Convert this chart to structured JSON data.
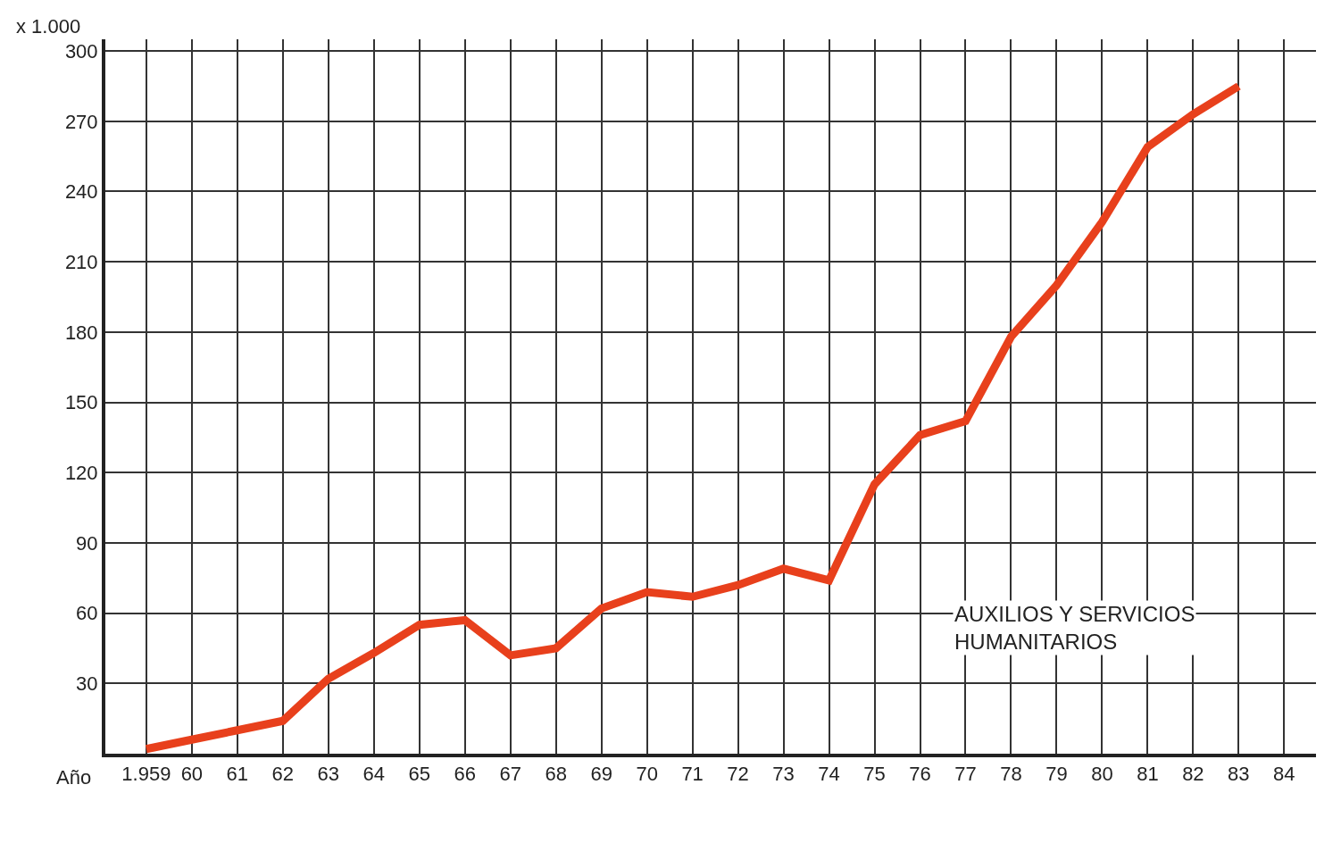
{
  "chart_data": {
    "type": "line",
    "xlabel": "Año",
    "ylabel": "x 1.000",
    "x": [
      1959,
      1960,
      1961,
      1962,
      1963,
      1964,
      1965,
      1966,
      1967,
      1968,
      1969,
      1970,
      1971,
      1972,
      1973,
      1974,
      1975,
      1976,
      1977,
      1978,
      1979,
      1980,
      1981,
      1982,
      1983
    ],
    "series": [
      {
        "name": "AUXILIOS Y SERVICIOS HUMANITARIOS",
        "color": "#e8401c",
        "values": [
          2,
          6,
          10,
          14,
          32,
          43,
          55,
          57,
          42,
          45,
          62,
          69,
          67,
          72,
          79,
          74,
          115,
          136,
          142,
          178,
          200,
          227,
          259,
          273,
          285
        ]
      }
    ],
    "xlim": [
      1958.1,
      1984.7
    ],
    "xticks": [
      {
        "value": 1959,
        "label": "1.959"
      },
      {
        "value": 1960,
        "label": "60"
      },
      {
        "value": 1961,
        "label": "61"
      },
      {
        "value": 1962,
        "label": "62"
      },
      {
        "value": 1963,
        "label": "63"
      },
      {
        "value": 1964,
        "label": "64"
      },
      {
        "value": 1965,
        "label": "65"
      },
      {
        "value": 1966,
        "label": "66"
      },
      {
        "value": 1967,
        "label": "67"
      },
      {
        "value": 1968,
        "label": "68"
      },
      {
        "value": 1969,
        "label": "69"
      },
      {
        "value": 1970,
        "label": "70"
      },
      {
        "value": 1971,
        "label": "71"
      },
      {
        "value": 1972,
        "label": "72"
      },
      {
        "value": 1973,
        "label": "73"
      },
      {
        "value": 1974,
        "label": "74"
      },
      {
        "value": 1975,
        "label": "75"
      },
      {
        "value": 1976,
        "label": "76"
      },
      {
        "value": 1977,
        "label": "77"
      },
      {
        "value": 1978,
        "label": "78"
      },
      {
        "value": 1979,
        "label": "79"
      },
      {
        "value": 1980,
        "label": "80"
      },
      {
        "value": 1981,
        "label": "81"
      },
      {
        "value": 1982,
        "label": "82"
      },
      {
        "value": 1983,
        "label": "83"
      },
      {
        "value": 1984,
        "label": "84"
      }
    ],
    "ylim": [
      0,
      305
    ],
    "yticks": [
      30,
      60,
      90,
      120,
      150,
      180,
      210,
      240,
      270,
      300
    ],
    "grid": true,
    "legend": false,
    "marker": "none",
    "line_style": "solid"
  }
}
